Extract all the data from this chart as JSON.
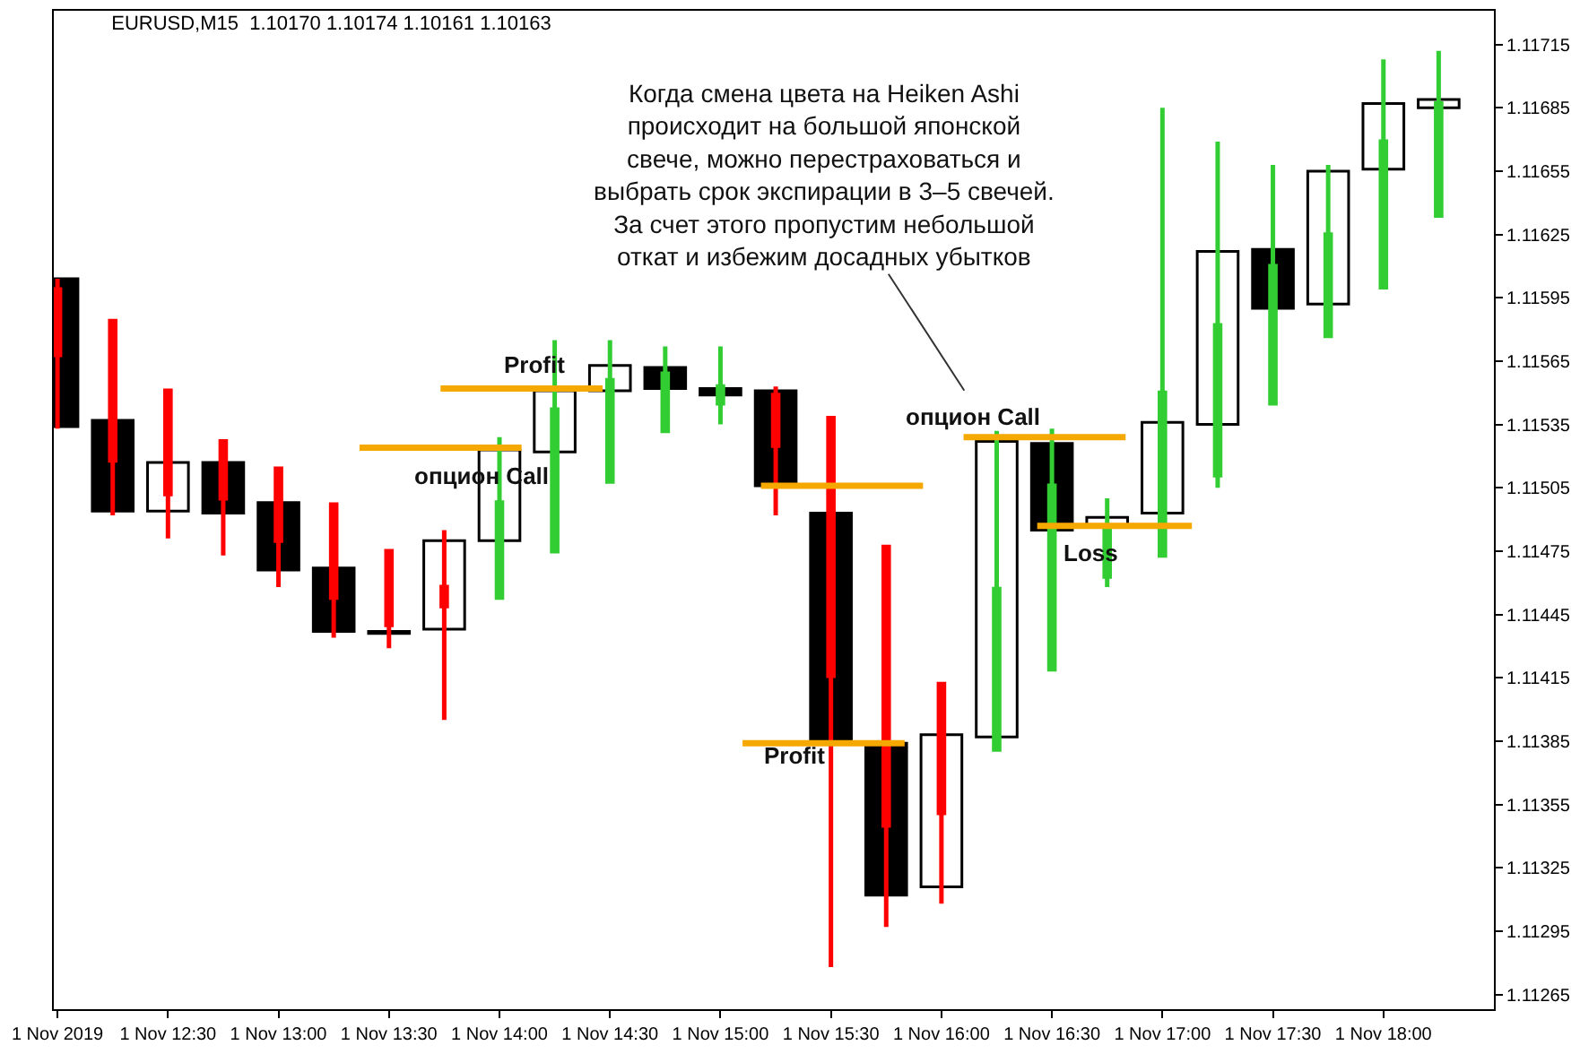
{
  "chart_data": {
    "type": "candlestick",
    "title": "EURUSD,M15  1.10170 1.10174 1.10161 1.10163",
    "x": [
      "2019-11-01T12:00",
      "2019-11-01T12:15",
      "2019-11-01T12:30",
      "2019-11-01T12:45",
      "2019-11-01T13:00",
      "2019-11-01T13:15",
      "2019-11-01T13:30",
      "2019-11-01T13:45",
      "2019-11-01T14:00",
      "2019-11-01T14:15",
      "2019-11-01T14:30",
      "2019-11-01T14:45",
      "2019-11-01T15:00",
      "2019-11-01T15:15",
      "2019-11-01T15:30",
      "2019-11-01T15:45",
      "2019-11-01T16:00",
      "2019-11-01T16:15",
      "2019-11-01T16:30",
      "2019-11-01T16:45",
      "2019-11-01T17:00",
      "2019-11-01T17:15",
      "2019-11-01T17:30",
      "2019-11-01T17:45",
      "2019-11-01T18:00",
      "2019-11-01T18:15"
    ],
    "series": [
      {
        "type": "bar",
        "values": [
          -0.0007,
          -0.00043,
          0.00023,
          -0.00024,
          -0.00032,
          -0.0003,
          -1e-05,
          0.00042,
          0.00043,
          0.00029,
          0.00012,
          -0.0001,
          -3e-05,
          -0.00045,
          -0.00109,
          -0.00072,
          0.00072,
          0.0014,
          -0.00041,
          4e-05,
          0.00043,
          0.00082,
          -0.00028,
          0.00063,
          0.00031,
          4e-05
        ],
        "base": [
          1.11604,
          1.11537,
          1.11494,
          1.11517,
          1.11498,
          1.11467,
          1.11437,
          1.11438,
          1.1148,
          1.11522,
          1.11551,
          1.11562,
          1.11552,
          1.11551,
          1.11493,
          1.11384,
          1.11316,
          1.11387,
          1.11526,
          1.11487,
          1.11493,
          1.11535,
          1.11618,
          1.11592,
          1.11656,
          1.11685
        ],
        "colors": [
          "#000000",
          "#000000",
          "#ffffff",
          "#000000",
          "#000000",
          "#000000",
          "#000000",
          "#ffffff",
          "#ffffff",
          "#ffffff",
          "#ffffff",
          "#000000",
          "#000000",
          "#000000",
          "#000000",
          "#000000",
          "#ffffff",
          "#ffffff",
          "#000000",
          "#ffffff",
          "#ffffff",
          "#ffffff",
          "#000000",
          "#ffffff",
          "#ffffff",
          "#ffffff"
        ]
      },
      {
        "type": "line",
        "color": "#f5a800",
        "x": [
          "2019-11-01T13:22",
          "2019-11-01T14:06"
        ],
        "values": [
          1.11524,
          1.11524
        ]
      },
      {
        "type": "line",
        "color": "#f5a800",
        "x": [
          "2019-11-01T13:44",
          "2019-11-01T14:28"
        ],
        "values": [
          1.11552,
          1.11552
        ]
      },
      {
        "type": "line",
        "color": "#f5a800",
        "x": [
          "2019-11-01T15:11",
          "2019-11-01T15:55"
        ],
        "values": [
          1.11506,
          1.11506
        ]
      },
      {
        "type": "line",
        "color": "#f5a800",
        "x": [
          "2019-11-01T15:06",
          "2019-11-01T15:50"
        ],
        "values": [
          1.11384,
          1.11384
        ]
      },
      {
        "type": "line",
        "color": "#f5a800",
        "x": [
          "2019-11-01T16:06",
          "2019-11-01T16:50"
        ],
        "values": [
          1.11529,
          1.11529
        ]
      },
      {
        "type": "line",
        "color": "#f5a800",
        "x": [
          "2019-11-01T16:26",
          "2019-11-01T17:08"
        ],
        "values": [
          1.11487,
          1.11487
        ]
      },
      {
        "colors": [
          "#ff0000",
          "#ff0000",
          "#ff0000",
          "#ff0000",
          "#ff0000",
          "#ff0000",
          "#ff0000",
          "#ff0000",
          "#32cd32",
          "#32cd32",
          "#32cd32",
          "#32cd32",
          "#32cd32",
          "#ff0000",
          "#ff0000",
          "#ff0000",
          "#ff0000",
          "#32cd32",
          "#32cd32",
          "#32cd32",
          "#32cd32",
          "#32cd32",
          "#32cd32",
          "#32cd32",
          "#32cd32",
          "#32cd32"
        ],
        "ohlc": [
          [
            1.11599,
            1.11604,
            1.11533,
            1.11568
          ],
          [
            1.11584,
            1.11584,
            1.11492,
            1.11518
          ],
          [
            1.11551,
            1.11551,
            1.11481,
            1.11502
          ],
          [
            1.11527,
            1.11527,
            1.11473,
            1.115
          ],
          [
            1.11514,
            1.11514,
            1.11458,
            1.1148
          ],
          [
            1.11497,
            1.11497,
            1.11434,
            1.11453
          ],
          [
            1.11475,
            1.11475,
            1.11429,
            1.1144
          ],
          [
            1.11458,
            1.11485,
            1.11395,
            1.11449
          ],
          [
            1.11453,
            1.11529,
            1.11453,
            1.11498
          ],
          [
            1.11475,
            1.11575,
            1.11475,
            1.11542
          ],
          [
            1.11508,
            1.11575,
            1.11508,
            1.11556
          ],
          [
            1.11532,
            1.11572,
            1.11532,
            1.11559
          ],
          [
            1.11545,
            1.11572,
            1.11535,
            1.11553
          ],
          [
            1.11549,
            1.11553,
            1.11492,
            1.11525
          ],
          [
            1.11538,
            1.11538,
            1.11278,
            1.11416
          ],
          [
            1.11477,
            1.11477,
            1.11297,
            1.11345
          ],
          [
            1.11412,
            1.11412,
            1.11308,
            1.11351
          ],
          [
            1.11381,
            1.11532,
            1.11381,
            1.11457
          ],
          [
            1.11419,
            1.11533,
            1.11419,
            1.11506
          ],
          [
            1.11463,
            1.115,
            1.11458,
            1.11485
          ],
          [
            1.11473,
            1.11685,
            1.11473,
            1.1155
          ],
          [
            1.11511,
            1.11669,
            1.11505,
            1.11582
          ],
          [
            1.11545,
            1.11658,
            1.11545,
            1.1161
          ],
          [
            1.11577,
            1.11658,
            1.11577,
            1.11625
          ],
          [
            1.116,
            1.11708,
            1.116,
            1.11669
          ],
          [
            1.11634,
            1.11712,
            1.11634,
            1.11687
          ]
        ]
      }
    ],
    "annotations": [
      "Когда смена цвета на Heiken Ashi\nпроисходит на большой японской\nсвече, можно перестраховаться и\nвыбрать срок экспирации в 3–5 свечей.\nЗа счет этого пропустим небольшой\nоткат и избежим досадных убытков",
      "опцион Call",
      "Profit",
      "Profit",
      "опцион Call",
      "Loss"
    ],
    "xlim": [
      "2019-11-01T11:59",
      "2019-11-01T18:30"
    ],
    "xticks": [
      {
        "value": "2019-11-01T12:00",
        "label": "1 Nov 2019"
      },
      {
        "value": "2019-11-01T12:30",
        "label": "1 Nov 12:30"
      },
      {
        "value": "2019-11-01T13:00",
        "label": "1 Nov 13:00"
      },
      {
        "value": "2019-11-01T13:30",
        "label": "1 Nov 13:30"
      },
      {
        "value": "2019-11-01T14:00",
        "label": "1 Nov 14:00"
      },
      {
        "value": "2019-11-01T14:30",
        "label": "1 Nov 14:30"
      },
      {
        "value": "2019-11-01T15:00",
        "label": "1 Nov 15:00"
      },
      {
        "value": "2019-11-01T15:30",
        "label": "1 Nov 15:30"
      },
      {
        "value": "2019-11-01T16:00",
        "label": "1 Nov 16:00"
      },
      {
        "value": "2019-11-01T16:30",
        "label": "1 Nov 16:30"
      },
      {
        "value": "2019-11-01T17:00",
        "label": "1 Nov 17:00"
      },
      {
        "value": "2019-11-01T17:30",
        "label": "1 Nov 17:30"
      },
      {
        "value": "2019-11-01T18:00",
        "label": "1 Nov 18:00"
      }
    ],
    "ylim": [
      1.11258,
      1.11731
    ],
    "yticks": [
      1.11265,
      1.11295,
      1.11325,
      1.11355,
      1.11385,
      1.11415,
      1.11445,
      1.11475,
      1.11505,
      1.11535,
      1.11565,
      1.11595,
      1.11625,
      1.11655,
      1.11685,
      1.11715
    ]
  }
}
